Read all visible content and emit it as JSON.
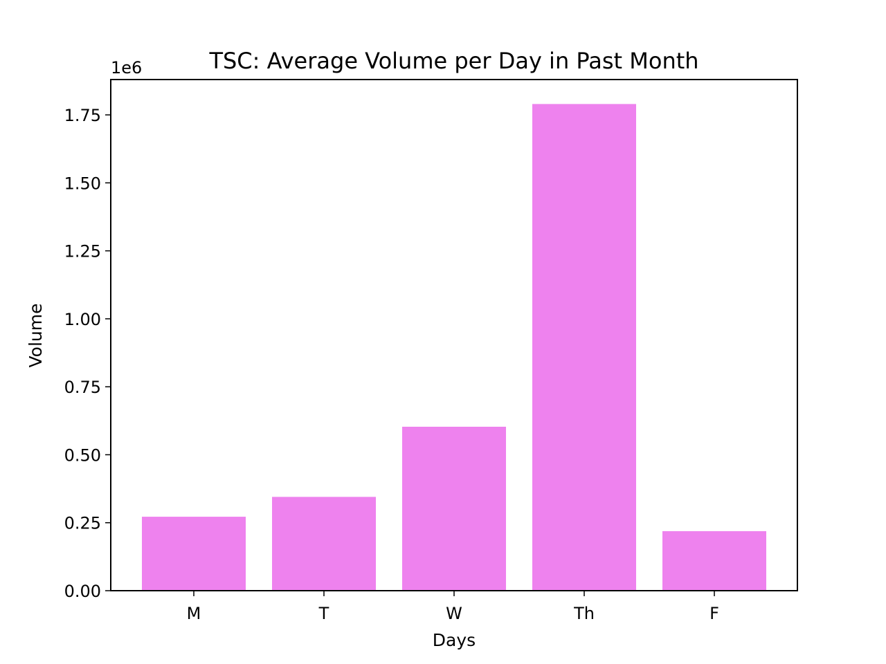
{
  "chart_data": {
    "type": "bar",
    "title": "TSC: Average Volume per Day in Past Month",
    "xlabel": "Days",
    "ylabel": "Volume",
    "y_offset_label": "1e6",
    "categories": [
      "M",
      "T",
      "W",
      "Th",
      "F"
    ],
    "values": [
      272000,
      345000,
      603000,
      1790000,
      219000
    ],
    "ylim": [
      0,
      1880000
    ],
    "yticks": [
      0,
      250000,
      500000,
      750000,
      1000000,
      1250000,
      1500000,
      1750000
    ],
    "ytick_labels": [
      "0.00",
      "0.25",
      "0.50",
      "0.75",
      "1.00",
      "1.25",
      "1.50",
      "1.75"
    ],
    "bar_color": "#ee82ee",
    "grid": false,
    "legend": "none"
  }
}
